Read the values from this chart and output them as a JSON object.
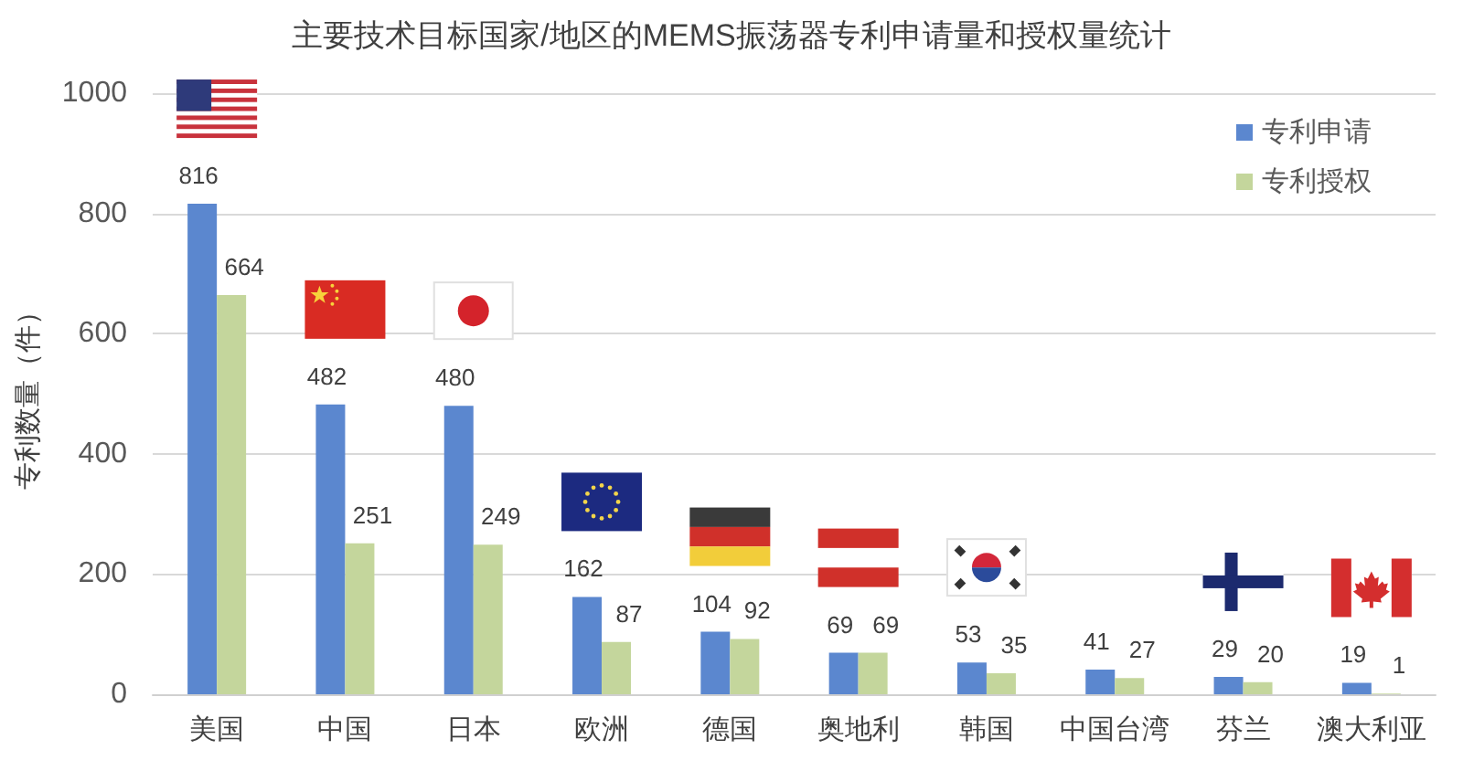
{
  "chart_data": {
    "type": "bar",
    "title": "主要技术目标国家/地区的MEMS振荡器专利申请量和授权量统计",
    "ylabel": "专利数量（件）",
    "categories": [
      "美国",
      "中国",
      "日本",
      "欧洲",
      "德国",
      "奥地利",
      "韩国",
      "中国台湾",
      "芬兰",
      "澳大利亚"
    ],
    "series": [
      {
        "name": "专利申请",
        "color": "#5b87cf",
        "values": [
          816,
          482,
          480,
          162,
          104,
          69,
          53,
          41,
          29,
          19
        ]
      },
      {
        "name": "专利授权",
        "color": "#c4d69c",
        "values": [
          664,
          251,
          249,
          87,
          92,
          69,
          35,
          27,
          20,
          1
        ]
      }
    ],
    "ylim": [
      0,
      1000
    ],
    "yticks": [
      0,
      200,
      400,
      600,
      800,
      1000
    ],
    "grid": "y",
    "legend": "top right",
    "data_labels": true
  }
}
